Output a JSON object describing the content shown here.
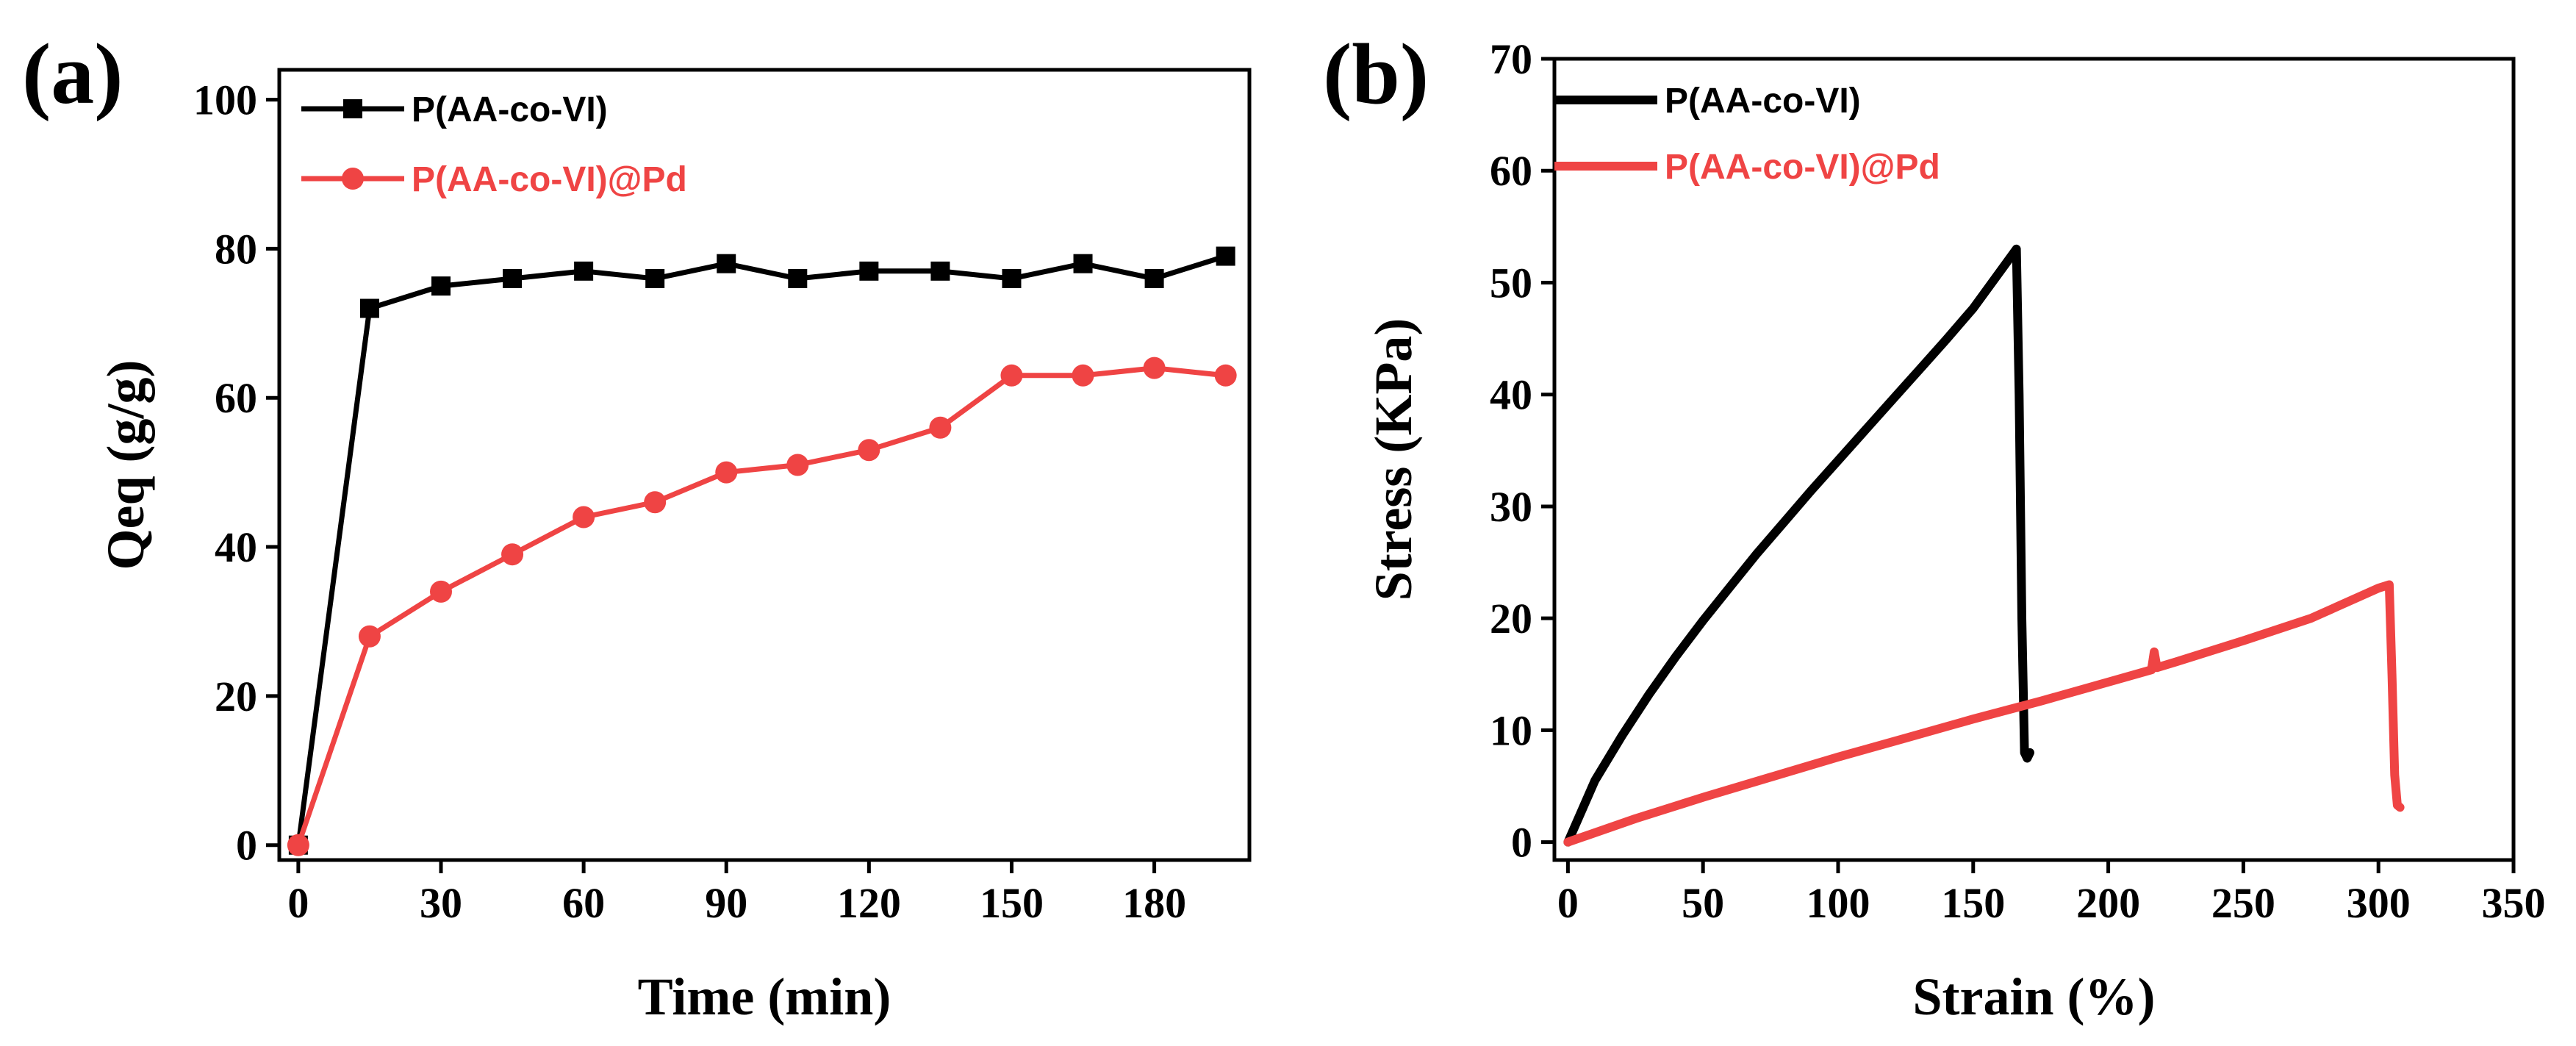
{
  "chart_data": [
    {
      "panel": "(a)",
      "type": "line",
      "xlabel": "Time (min)",
      "ylabel": "Qeq (g/g)",
      "xlim": [
        -4,
        200
      ],
      "ylim": [
        -2,
        104
      ],
      "xticks": [
        0,
        30,
        60,
        90,
        120,
        150,
        180
      ],
      "yticks": [
        0,
        20,
        40,
        60,
        80,
        100
      ],
      "x": [
        0,
        15,
        30,
        45,
        60,
        75,
        90,
        105,
        120,
        135,
        150,
        165,
        180,
        195
      ],
      "series": [
        {
          "name": "P(AA-co-VI)",
          "color": "#000000",
          "marker": "square",
          "values": [
            0,
            72,
            75,
            76,
            77,
            76,
            78,
            76,
            77,
            77,
            76,
            78,
            76,
            79
          ]
        },
        {
          "name": "P(AA-co-VI)@Pd",
          "color": "#EF4444",
          "marker": "circle",
          "values": [
            0,
            28,
            34,
            39,
            44,
            46,
            50,
            51,
            53,
            56,
            63,
            63,
            64,
            63
          ]
        }
      ],
      "legend_position": "top-left"
    },
    {
      "panel": "(b)",
      "type": "line",
      "xlabel": "Strain (%)",
      "ylabel": "Stress (KPa)",
      "xlim": [
        -5,
        350
      ],
      "ylim": [
        -1.6,
        70
      ],
      "xticks": [
        0,
        50,
        100,
        150,
        200,
        250,
        300,
        350
      ],
      "yticks": [
        0,
        10,
        20,
        30,
        40,
        50,
        60,
        70
      ],
      "series": [
        {
          "name": "P(AA-co-VI)",
          "color": "#000000",
          "points": [
            [
              0,
              0
            ],
            [
              10,
              5.5
            ],
            [
              20,
              9.5
            ],
            [
              30,
              13.2
            ],
            [
              40,
              16.6
            ],
            [
              50,
              19.8
            ],
            [
              60,
              22.8
            ],
            [
              70,
              25.8
            ],
            [
              80,
              28.6
            ],
            [
              90,
              31.4
            ],
            [
              100,
              34.1
            ],
            [
              110,
              36.8
            ],
            [
              120,
              39.5
            ],
            [
              130,
              42.2
            ],
            [
              140,
              44.9
            ],
            [
              150,
              47.7
            ],
            [
              160,
              51.0
            ],
            [
              166,
              53.0
            ],
            [
              167,
              40.0
            ],
            [
              168,
              20.0
            ],
            [
              169,
              8.0
            ],
            [
              170,
              7.5
            ],
            [
              171,
              8.0
            ]
          ]
        },
        {
          "name": "P(AA-co-VI)@Pd",
          "color": "#EF4444",
          "points": [
            [
              0,
              0
            ],
            [
              25,
              2.1
            ],
            [
              50,
              4.0
            ],
            [
              75,
              5.8
            ],
            [
              100,
              7.6
            ],
            [
              125,
              9.3
            ],
            [
              150,
              11.0
            ],
            [
              175,
              12.6
            ],
            [
              200,
              14.3
            ],
            [
              216,
              15.4
            ],
            [
              217,
              17.0
            ],
            [
              218,
              15.6
            ],
            [
              225,
              16.1
            ],
            [
              250,
              18.0
            ],
            [
              275,
              20.0
            ],
            [
              300,
              22.7
            ],
            [
              304,
              23.0
            ],
            [
              305,
              15.0
            ],
            [
              306,
              6.0
            ],
            [
              307,
              3.3
            ],
            [
              308,
              3.1
            ]
          ]
        }
      ],
      "legend_position": "top-left"
    }
  ]
}
